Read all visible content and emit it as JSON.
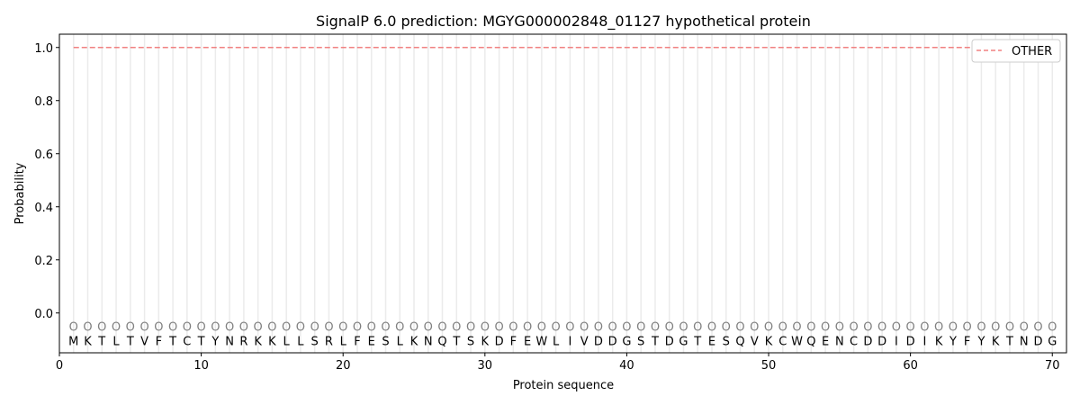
{
  "chart_data": {
    "type": "line",
    "title": "SignalP 6.0 prediction: MGYG000002848_01127 hypothetical protein",
    "xlabel": "Protein sequence",
    "ylabel": "Probability",
    "xlim": [
      0,
      71
    ],
    "ylim": [
      -0.15,
      1.05
    ],
    "xticks": [
      0,
      10,
      20,
      30,
      40,
      50,
      60,
      70
    ],
    "yticks": [
      0.0,
      0.2,
      0.4,
      0.6,
      0.8,
      1.0
    ],
    "ytick_labels": [
      "0.0",
      "0.2",
      "0.4",
      "0.6",
      "0.8",
      "1.0"
    ],
    "grid": "vertical lines at each residue",
    "legend_position": "top-right",
    "sequence": "MKTLTVFTCTYNRKKLLSRLFESLKNQTSKDFEWLIVDDGSTDGTESQVKCWQENCDDIDIKYFYKTNDG",
    "region_labels": "OOOOOOOOOOOOOOOOOOOOOOOOOOOOOOOOOOOOOOOOOOOOOOOOOOOOOOOOOOOOOOOOOOOOOO",
    "series": [
      {
        "name": "OTHER",
        "color": "#f08080",
        "style": "dashed",
        "x_range": [
          1,
          70
        ],
        "value": 1.0
      }
    ]
  }
}
